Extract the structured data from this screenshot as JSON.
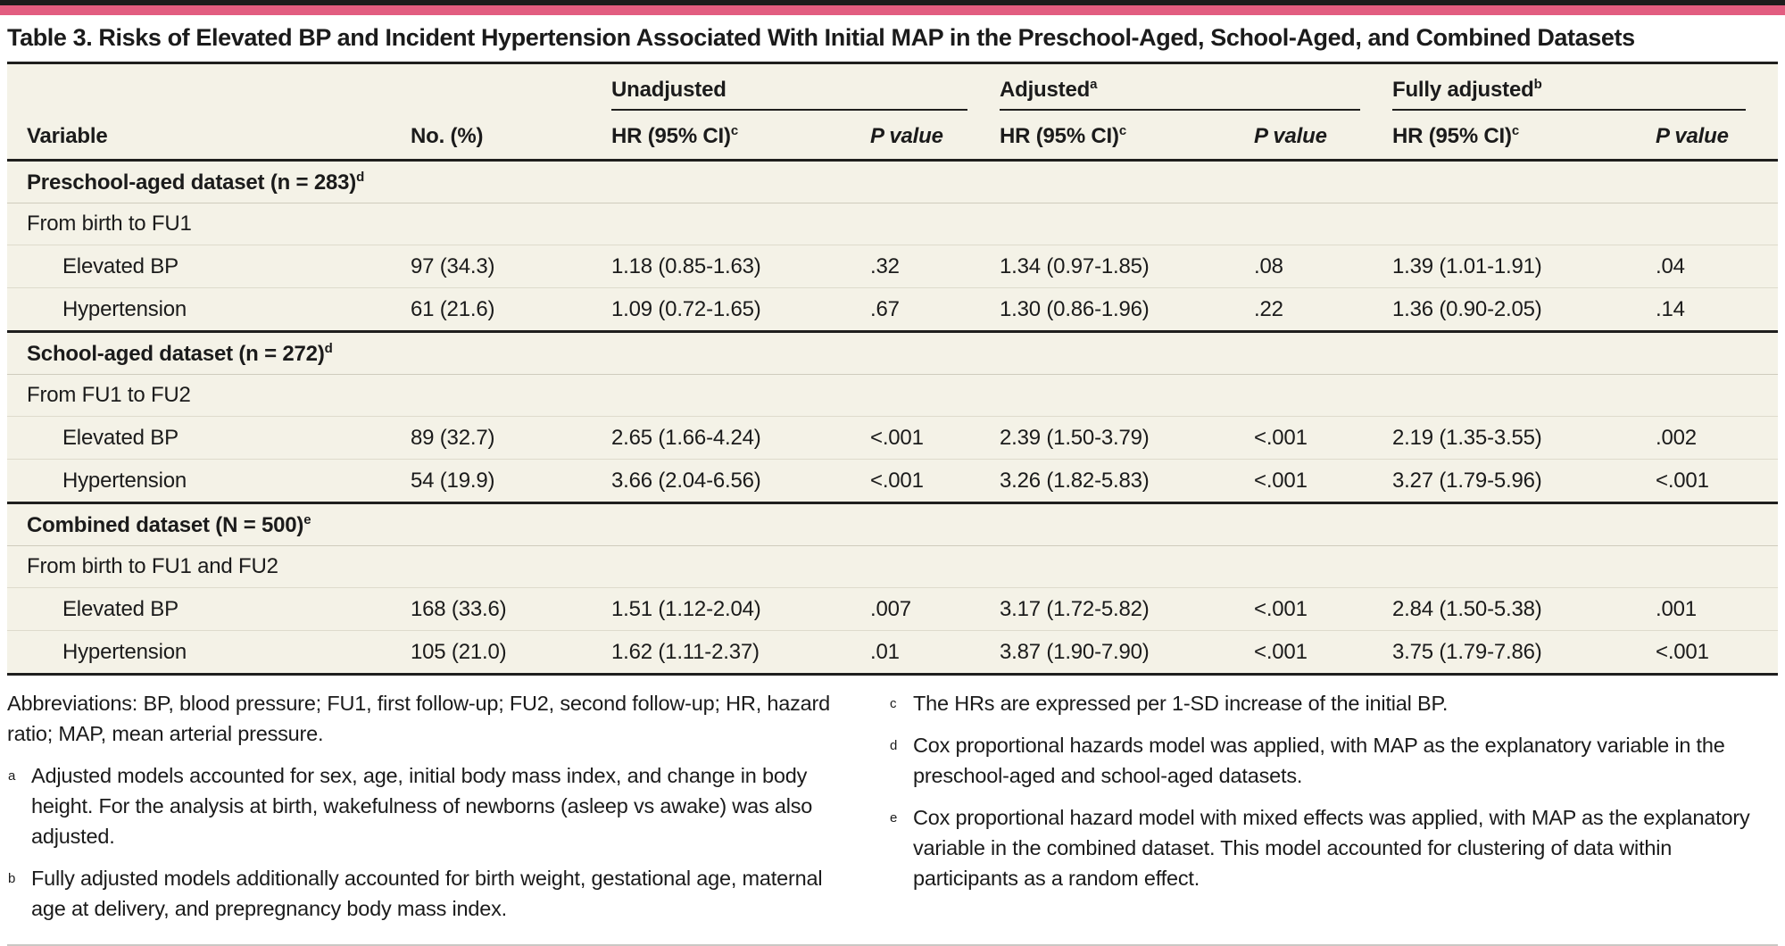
{
  "colors": {
    "top_bar": "#1c1c1c",
    "pink_accent_bar": "#e25d80",
    "table_background": "#f4f2e7",
    "heavy_rule": "#1f1f1e",
    "thin_row_line": "#dedbcc",
    "bottom_line": "#c9c8c4"
  },
  "title": "Table 3. Risks of Elevated BP and Incident Hypertension Associated With Initial MAP in the Preschool-Aged, School-Aged, and Combined Datasets",
  "header": {
    "variable": "Variable",
    "no": "No. (%)",
    "hr_label": "HR (95% CI)",
    "hr_sup": "c",
    "p_label": "P value",
    "groups": [
      {
        "label": "Unadjusted",
        "sup": ""
      },
      {
        "label": "Adjusted",
        "sup": "a"
      },
      {
        "label": "Fully adjusted",
        "sup": "b"
      }
    ]
  },
  "sections": [
    {
      "title": "Preschool-aged dataset (n = 283)",
      "sup": "d",
      "period": "From birth to FU1",
      "rows": [
        {
          "variable": "Elevated BP",
          "no": "97 (34.3)",
          "u_hr": "1.18 (0.85-1.63)",
          "u_p": ".32",
          "a_hr": "1.34 (0.97-1.85)",
          "a_p": ".08",
          "f_hr": "1.39 (1.01-1.91)",
          "f_p": ".04"
        },
        {
          "variable": "Hypertension",
          "no": "61 (21.6)",
          "u_hr": "1.09 (0.72-1.65)",
          "u_p": ".67",
          "a_hr": "1.30 (0.86-1.96)",
          "a_p": ".22",
          "f_hr": "1.36 (0.90-2.05)",
          "f_p": ".14"
        }
      ]
    },
    {
      "title": "School-aged dataset (n = 272)",
      "sup": "d",
      "period": "From FU1 to FU2",
      "rows": [
        {
          "variable": "Elevated BP",
          "no": "89 (32.7)",
          "u_hr": "2.65 (1.66-4.24)",
          "u_p": "<.001",
          "a_hr": "2.39 (1.50-3.79)",
          "a_p": "<.001",
          "f_hr": "2.19 (1.35-3.55)",
          "f_p": ".002"
        },
        {
          "variable": "Hypertension",
          "no": "54 (19.9)",
          "u_hr": "3.66 (2.04-6.56)",
          "u_p": "<.001",
          "a_hr": "3.26 (1.82-5.83)",
          "a_p": "<.001",
          "f_hr": "3.27 (1.79-5.96)",
          "f_p": "<.001"
        }
      ]
    },
    {
      "title": "Combined dataset (N = 500)",
      "sup": "e",
      "period": "From birth to FU1 and FU2",
      "rows": [
        {
          "variable": "Elevated BP",
          "no": "168 (33.6)",
          "u_hr": "1.51 (1.12-2.04)",
          "u_p": ".007",
          "a_hr": "3.17 (1.72-5.82)",
          "a_p": "<.001",
          "f_hr": "2.84 (1.50-5.38)",
          "f_p": ".001"
        },
        {
          "variable": "Hypertension",
          "no": "105 (21.0)",
          "u_hr": "1.62 (1.11-2.37)",
          "u_p": ".01",
          "a_hr": "3.87 (1.90-7.90)",
          "a_p": "<.001",
          "f_hr": "3.75 (1.79-7.86)",
          "f_p": "<.001"
        }
      ]
    }
  ],
  "footnotes": {
    "abbreviations": "Abbreviations: BP, blood pressure; FU1, first follow-up; FU2, second follow-up; HR, hazard ratio; MAP, mean arterial pressure.",
    "a": "Adjusted models accounted for sex, age, initial body mass index, and change in body height. For the analysis at birth, wakefulness of newborns (asleep vs awake) was also adjusted.",
    "b": "Fully adjusted models additionally accounted for birth weight, gestational age, maternal age at delivery, and prepregnancy body mass index.",
    "c": "The HRs are expressed per 1-SD increase of the initial BP.",
    "d": "Cox proportional hazards model was applied, with MAP as the explanatory variable in the preschool-aged and school-aged datasets.",
    "e": "Cox proportional hazard model with mixed effects was applied, with MAP as the explanatory variable in the combined dataset. This model accounted for clustering of data within participants as a random effect."
  }
}
